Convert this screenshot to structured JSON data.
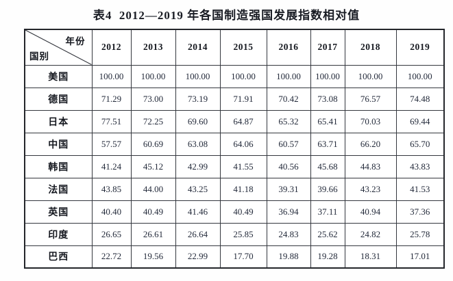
{
  "title": "表4  2012—2019 年各国制造强国发展指数相对值",
  "table": {
    "corner": {
      "top_right": "年份",
      "bottom_left": "国别"
    },
    "year_headers": [
      "2012",
      "2013",
      "2014",
      "2015",
      "2016",
      "2017",
      "2018",
      "2019"
    ],
    "rows": [
      {
        "country": "美国",
        "values": [
          "100.00",
          "100.00",
          "100.00",
          "100.00",
          "100.00",
          "100.00",
          "100.00",
          "100.00"
        ]
      },
      {
        "country": "德国",
        "values": [
          "71.29",
          "73.00",
          "73.19",
          "71.91",
          "70.42",
          "73.08",
          "76.57",
          "74.48"
        ]
      },
      {
        "country": "日本",
        "values": [
          "77.51",
          "72.25",
          "69.60",
          "64.87",
          "65.32",
          "65.41",
          "70.03",
          "69.44"
        ]
      },
      {
        "country": "中国",
        "values": [
          "57.57",
          "60.69",
          "63.08",
          "64.06",
          "60.57",
          "63.71",
          "66.20",
          "65.70"
        ]
      },
      {
        "country": "韩国",
        "values": [
          "41.24",
          "45.12",
          "42.99",
          "41.55",
          "40.56",
          "45.68",
          "44.83",
          "43.83"
        ]
      },
      {
        "country": "法国",
        "values": [
          "43.85",
          "44.00",
          "43.25",
          "41.18",
          "39.31",
          "39.66",
          "43.23",
          "41.53"
        ]
      },
      {
        "country": "英国",
        "values": [
          "40.40",
          "40.49",
          "41.46",
          "40.49",
          "36.94",
          "37.11",
          "40.94",
          "37.36"
        ]
      },
      {
        "country": "印度",
        "values": [
          "26.65",
          "26.61",
          "26.64",
          "25.85",
          "24.83",
          "25.62",
          "24.82",
          "25.78"
        ]
      },
      {
        "country": "巴西",
        "values": [
          "22.72",
          "19.56",
          "22.99",
          "17.70",
          "19.88",
          "19.28",
          "18.31",
          "17.01"
        ]
      }
    ]
  },
  "colors": {
    "border_outer": "#23252a",
    "border_inner": "#33363d",
    "text": "#1e2330",
    "background": "#fefefe"
  }
}
